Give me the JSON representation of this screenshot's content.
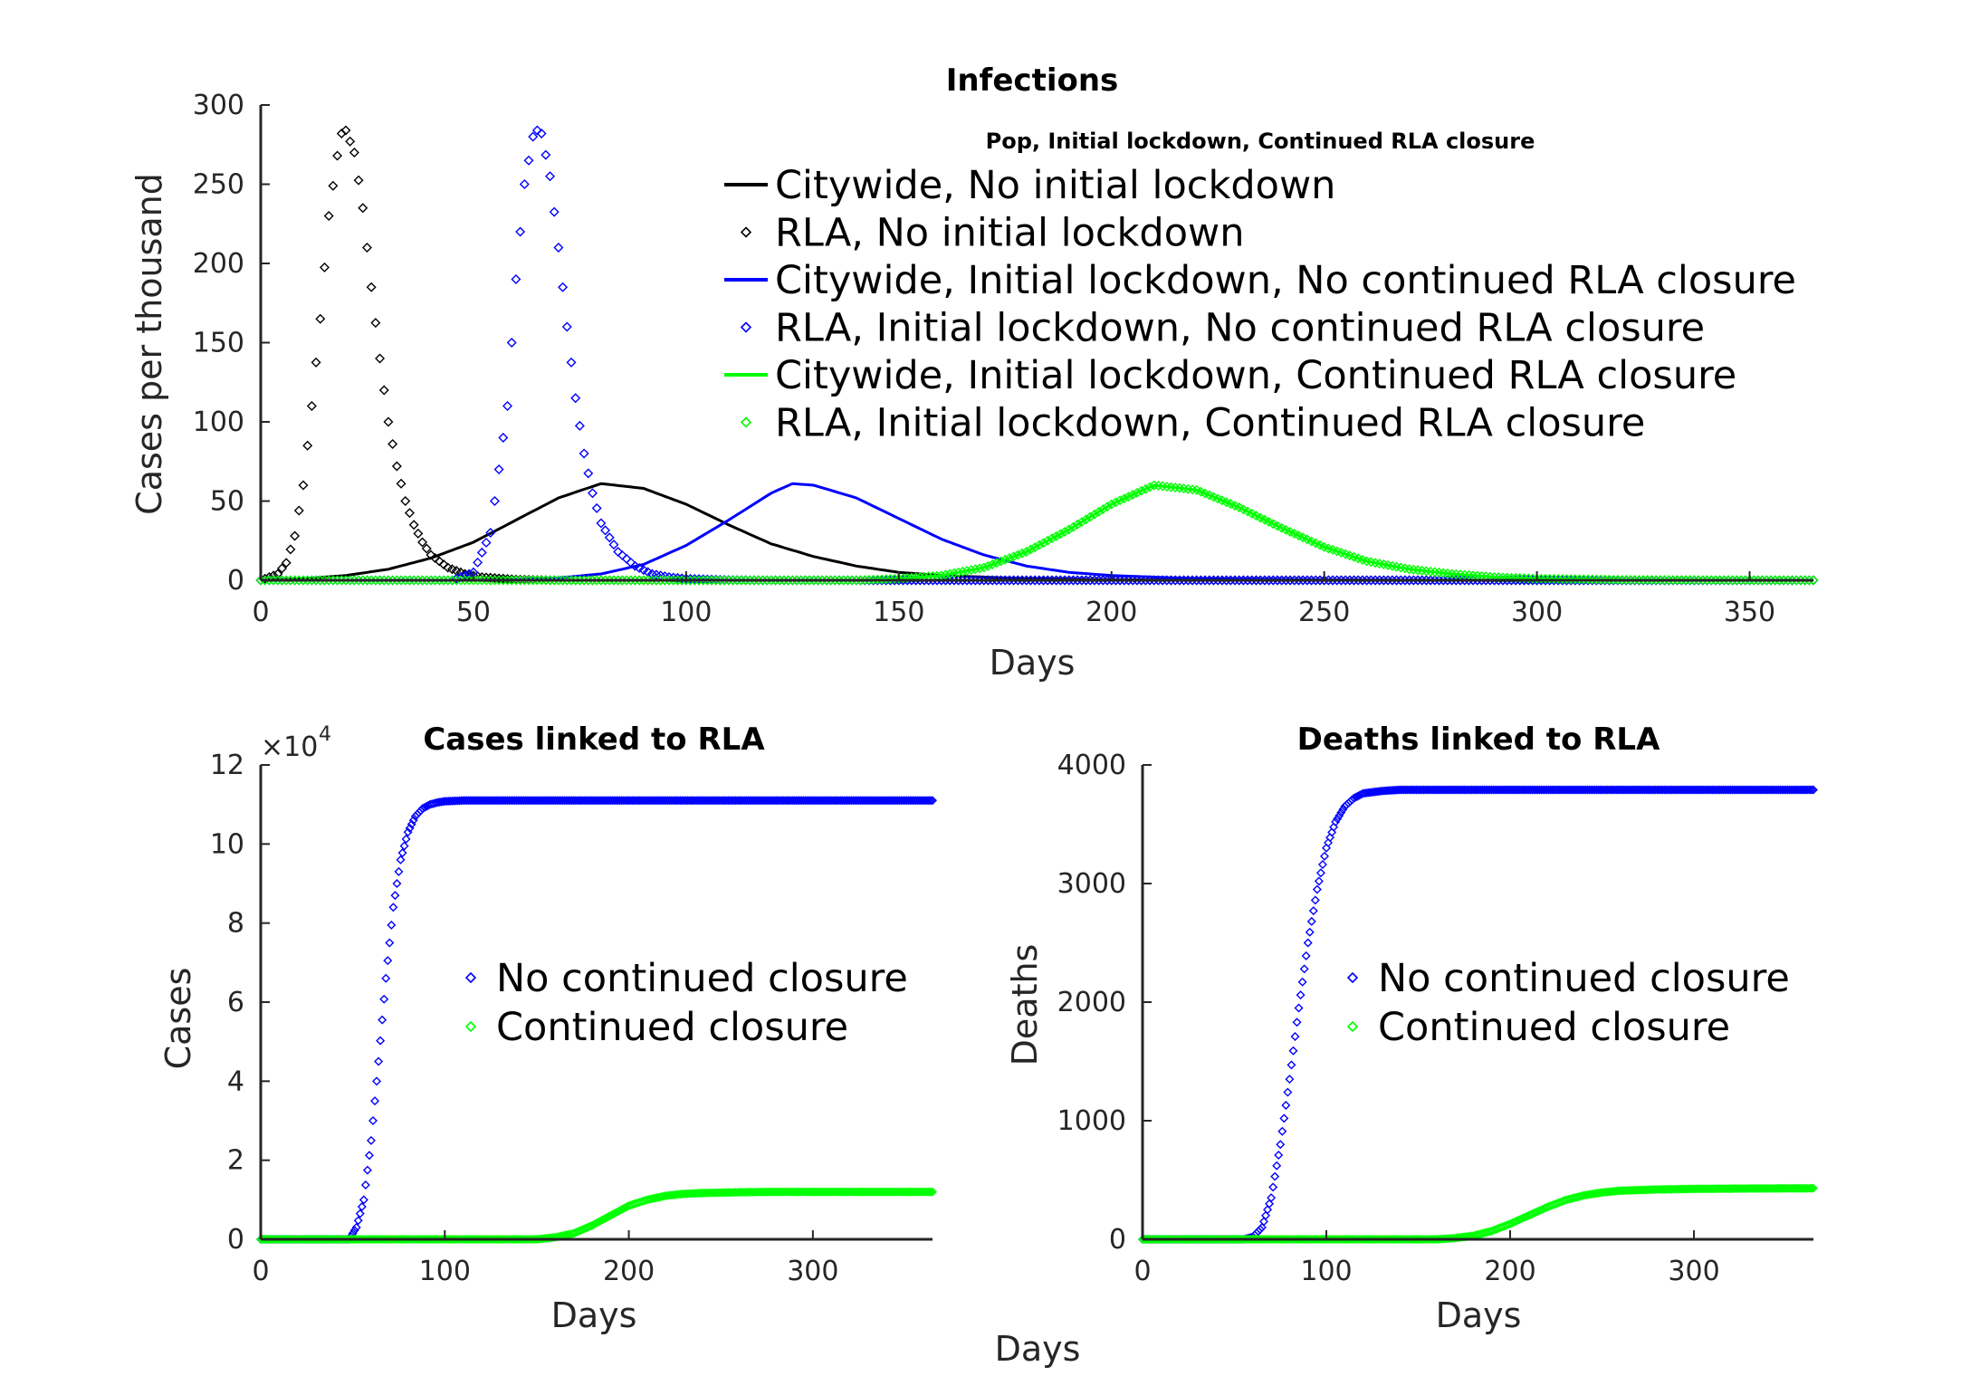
{
  "figure": {
    "bottom_label": "Days"
  },
  "chart_data": [
    {
      "type": "line",
      "title": "Infections",
      "legend_title": "Pop, Initial lockdown, Continued RLA closure",
      "xlabel": "Days",
      "ylabel": "Cases per thousand",
      "xlim": [
        0,
        365
      ],
      "ylim": [
        0,
        300
      ],
      "xticks": [
        0,
        50,
        100,
        150,
        200,
        250,
        300,
        350
      ],
      "yticks": [
        0,
        50,
        100,
        150,
        200,
        250,
        300
      ],
      "legend_position": "top-right",
      "colors": {
        "black": "#000000",
        "blue": "#0000ff",
        "green": "#00ff00"
      },
      "series": [
        {
          "name": "Citywide, No initial lockdown",
          "style": "line",
          "color": "#000000",
          "x": [
            0,
            10,
            20,
            30,
            40,
            50,
            60,
            70,
            80,
            90,
            100,
            110,
            120,
            130,
            140,
            150,
            160,
            170,
            180,
            200,
            250,
            300,
            365
          ],
          "y": [
            0,
            1,
            3,
            7,
            14,
            24,
            38,
            52,
            61,
            58,
            48,
            35,
            23,
            15,
            9,
            5,
            3,
            2,
            1,
            0.3,
            0,
            0,
            0
          ]
        },
        {
          "name": "RLA, No initial lockdown",
          "style": "markers",
          "color": "#000000",
          "x": [
            0,
            4,
            6,
            8,
            10,
            12,
            14,
            16,
            18,
            19,
            20,
            22,
            24,
            26,
            28,
            30,
            32,
            34,
            36,
            38,
            40,
            44,
            48,
            52,
            60,
            70,
            80,
            100,
            365
          ],
          "y": [
            0,
            4,
            11,
            28,
            60,
            110,
            165,
            230,
            268,
            282,
            284,
            270,
            235,
            185,
            140,
            100,
            72,
            50,
            35,
            24,
            16,
            8,
            4,
            2,
            0.5,
            0,
            0,
            0,
            0
          ]
        },
        {
          "name": "Citywide, Initial lockdown, No continued RLA closure",
          "style": "line",
          "color": "#0000ff",
          "x": [
            0,
            50,
            60,
            70,
            80,
            90,
            100,
            110,
            120,
            125,
            130,
            140,
            150,
            160,
            170,
            180,
            190,
            200,
            220,
            250,
            300,
            365
          ],
          "y": [
            0,
            0,
            0.5,
            1.5,
            4,
            10,
            22,
            38,
            55,
            61,
            60,
            52,
            39,
            26,
            16,
            9,
            5,
            3,
            1,
            0.3,
            0,
            0
          ]
        },
        {
          "name": "RLA, Initial lockdown, No continued RLA closure",
          "style": "markers",
          "color": "#0000ff",
          "x": [
            0,
            45,
            50,
            54,
            58,
            60,
            62,
            64,
            65,
            66,
            68,
            70,
            72,
            74,
            76,
            78,
            80,
            84,
            88,
            92,
            96,
            100,
            110,
            120,
            365
          ],
          "y": [
            0,
            0,
            5,
            30,
            110,
            190,
            250,
            280,
            284,
            282,
            255,
            210,
            160,
            115,
            80,
            55,
            36,
            18,
            9,
            4,
            2,
            1,
            0.2,
            0,
            0
          ]
        },
        {
          "name": "Citywide, Initial lockdown, Continued RLA closure",
          "style": "line",
          "color": "#00ff00",
          "x": [
            0,
            140,
            150,
            160,
            170,
            180,
            190,
            200,
            210,
            220,
            230,
            240,
            250,
            260,
            270,
            280,
            290,
            300,
            320,
            365
          ],
          "y": [
            0,
            0,
            1,
            3,
            8,
            18,
            32,
            48,
            60,
            57,
            46,
            33,
            21,
            12,
            7,
            4,
            2,
            1,
            0.3,
            0
          ]
        },
        {
          "name": "RLA, Initial lockdown, Continued RLA closure",
          "style": "markers",
          "color": "#00ff00",
          "x": [
            0,
            140,
            150,
            160,
            170,
            180,
            190,
            200,
            210,
            220,
            230,
            240,
            250,
            260,
            270,
            280,
            290,
            300,
            320,
            365
          ],
          "y": [
            0,
            0,
            1,
            3,
            8,
            18,
            32,
            48,
            60,
            57,
            46,
            33,
            21,
            12,
            7,
            4,
            2,
            1,
            0.3,
            0
          ]
        }
      ]
    },
    {
      "type": "scatter",
      "title": "Cases linked to RLA",
      "xlabel": "Days",
      "ylabel": "Cases",
      "ylabel_exponent": "×10",
      "ylabel_exponent_power": "4",
      "xlim": [
        0,
        365
      ],
      "ylim": [
        0,
        12
      ],
      "xticks": [
        0,
        100,
        200,
        300
      ],
      "yticks": [
        0,
        2,
        4,
        6,
        8,
        10,
        12
      ],
      "legend_position": "center-right",
      "series": [
        {
          "name": "No continued closure",
          "color": "#0000ff",
          "x": [
            0,
            48,
            52,
            56,
            60,
            64,
            68,
            72,
            76,
            80,
            84,
            88,
            92,
            96,
            100,
            110,
            120,
            200,
            300,
            365
          ],
          "y": [
            0,
            0,
            0.3,
            1.0,
            2.5,
            4.5,
            6.6,
            8.4,
            9.6,
            10.3,
            10.7,
            10.9,
            11.0,
            11.05,
            11.08,
            11.1,
            11.1,
            11.1,
            11.1,
            11.1
          ]
        },
        {
          "name": "Continued closure",
          "color": "#00ff00",
          "x": [
            0,
            150,
            160,
            170,
            180,
            190,
            200,
            210,
            220,
            230,
            240,
            250,
            260,
            280,
            300,
            365
          ],
          "y": [
            0,
            0,
            0.05,
            0.15,
            0.35,
            0.6,
            0.85,
            1.0,
            1.1,
            1.15,
            1.17,
            1.18,
            1.19,
            1.2,
            1.2,
            1.2
          ]
        }
      ]
    },
    {
      "type": "scatter",
      "title": "Deaths linked to RLA",
      "xlabel": "Days",
      "ylabel": "Deaths",
      "xlim": [
        0,
        365
      ],
      "ylim": [
        0,
        4000
      ],
      "xticks": [
        0,
        100,
        200,
        300
      ],
      "yticks": [
        0,
        1000,
        2000,
        3000,
        4000
      ],
      "legend_position": "center-right",
      "series": [
        {
          "name": "No continued closure",
          "color": "#0000ff",
          "x": [
            0,
            55,
            60,
            65,
            70,
            75,
            80,
            85,
            90,
            95,
            100,
            105,
            110,
            115,
            120,
            130,
            140,
            160,
            200,
            300,
            365
          ],
          "y": [
            0,
            0,
            20,
            100,
            350,
            800,
            1350,
            1950,
            2500,
            2950,
            3300,
            3520,
            3650,
            3720,
            3760,
            3780,
            3790,
            3790,
            3790,
            3790,
            3790
          ]
        },
        {
          "name": "Continued closure",
          "color": "#00ff00",
          "x": [
            0,
            160,
            170,
            180,
            190,
            200,
            210,
            220,
            230,
            240,
            250,
            260,
            270,
            280,
            300,
            330,
            365
          ],
          "y": [
            0,
            0,
            10,
            30,
            70,
            130,
            200,
            270,
            330,
            370,
            395,
            410,
            415,
            420,
            425,
            428,
            430
          ]
        }
      ]
    }
  ]
}
